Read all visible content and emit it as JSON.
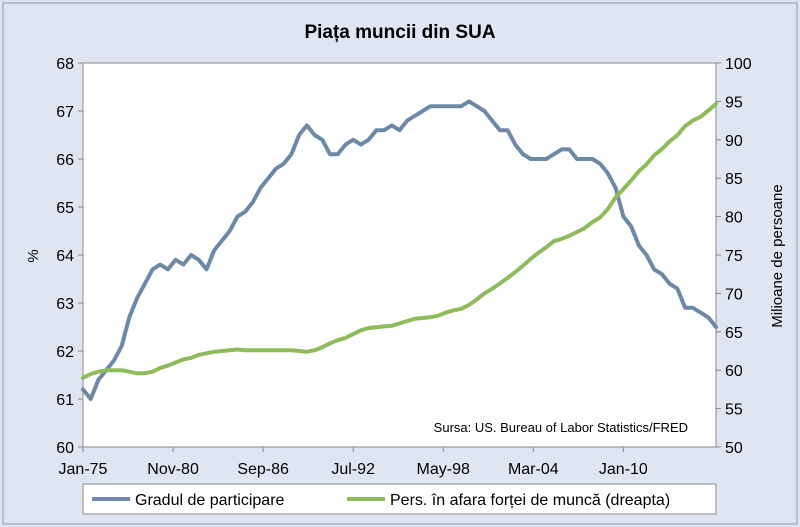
{
  "chart_data": {
    "type": "line",
    "title": "Piața muncii din SUA",
    "ylabel_left": "%",
    "ylabel_right": "Milioane de persoane",
    "source_note": "Sursa: US. Bureau of Labor Statistics/FRED",
    "x_range": [
      1975.0,
      2016.0
    ],
    "x_ticks": [
      {
        "label": "Jan-75",
        "year": 1975.0
      },
      {
        "label": "Nov-80",
        "year": 1980.833
      },
      {
        "label": "Sep-86",
        "year": 1986.667
      },
      {
        "label": "Jul-92",
        "year": 1992.5
      },
      {
        "label": "May-98",
        "year": 1998.333
      },
      {
        "label": "Mar-04",
        "year": 2004.167
      },
      {
        "label": "Jan-10",
        "year": 2010.0
      }
    ],
    "y_left": {
      "min": 60,
      "max": 68,
      "ticks": [
        "60",
        "61",
        "62",
        "63",
        "64",
        "65",
        "66",
        "67",
        "68"
      ]
    },
    "y_right": {
      "min": 50,
      "max": 100,
      "ticks": [
        "50",
        "55",
        "60",
        "65",
        "70",
        "75",
        "80",
        "85",
        "90",
        "95",
        "100"
      ]
    },
    "grid": false,
    "legend_position": "bottom",
    "series": [
      {
        "name": "Gradul de participare",
        "axis": "left",
        "color": "#6e89a8",
        "points": [
          [
            1975.0,
            61.2
          ],
          [
            1975.5,
            61.0
          ],
          [
            1976.0,
            61.4
          ],
          [
            1976.5,
            61.6
          ],
          [
            1977.0,
            61.8
          ],
          [
            1977.5,
            62.1
          ],
          [
            1978.0,
            62.7
          ],
          [
            1978.5,
            63.1
          ],
          [
            1979.0,
            63.4
          ],
          [
            1979.5,
            63.7
          ],
          [
            1980.0,
            63.8
          ],
          [
            1980.5,
            63.7
          ],
          [
            1981.0,
            63.9
          ],
          [
            1981.5,
            63.8
          ],
          [
            1982.0,
            64.0
          ],
          [
            1982.5,
            63.9
          ],
          [
            1983.0,
            63.7
          ],
          [
            1983.5,
            64.1
          ],
          [
            1984.0,
            64.3
          ],
          [
            1984.5,
            64.5
          ],
          [
            1985.0,
            64.8
          ],
          [
            1985.5,
            64.9
          ],
          [
            1986.0,
            65.1
          ],
          [
            1986.5,
            65.4
          ],
          [
            1987.0,
            65.6
          ],
          [
            1987.5,
            65.8
          ],
          [
            1988.0,
            65.9
          ],
          [
            1988.5,
            66.1
          ],
          [
            1989.0,
            66.5
          ],
          [
            1989.5,
            66.7
          ],
          [
            1990.0,
            66.5
          ],
          [
            1990.5,
            66.4
          ],
          [
            1991.0,
            66.1
          ],
          [
            1991.5,
            66.1
          ],
          [
            1992.0,
            66.3
          ],
          [
            1992.5,
            66.4
          ],
          [
            1993.0,
            66.3
          ],
          [
            1993.5,
            66.4
          ],
          [
            1994.0,
            66.6
          ],
          [
            1994.5,
            66.6
          ],
          [
            1995.0,
            66.7
          ],
          [
            1995.5,
            66.6
          ],
          [
            1996.0,
            66.8
          ],
          [
            1996.5,
            66.9
          ],
          [
            1997.0,
            67.0
          ],
          [
            1997.5,
            67.1
          ],
          [
            1998.0,
            67.1
          ],
          [
            1998.5,
            67.1
          ],
          [
            1999.0,
            67.1
          ],
          [
            1999.5,
            67.1
          ],
          [
            2000.0,
            67.2
          ],
          [
            2000.5,
            67.1
          ],
          [
            2001.0,
            67.0
          ],
          [
            2001.5,
            66.8
          ],
          [
            2002.0,
            66.6
          ],
          [
            2002.5,
            66.6
          ],
          [
            2003.0,
            66.3
          ],
          [
            2003.5,
            66.1
          ],
          [
            2004.0,
            66.0
          ],
          [
            2004.5,
            66.0
          ],
          [
            2005.0,
            66.0
          ],
          [
            2005.5,
            66.1
          ],
          [
            2006.0,
            66.2
          ],
          [
            2006.5,
            66.2
          ],
          [
            2007.0,
            66.0
          ],
          [
            2007.5,
            66.0
          ],
          [
            2008.0,
            66.0
          ],
          [
            2008.5,
            65.9
          ],
          [
            2009.0,
            65.7
          ],
          [
            2009.5,
            65.4
          ],
          [
            2010.0,
            64.8
          ],
          [
            2010.5,
            64.6
          ],
          [
            2011.0,
            64.2
          ],
          [
            2011.5,
            64.0
          ],
          [
            2012.0,
            63.7
          ],
          [
            2012.5,
            63.6
          ],
          [
            2013.0,
            63.4
          ],
          [
            2013.5,
            63.3
          ],
          [
            2014.0,
            62.9
          ],
          [
            2014.5,
            62.9
          ],
          [
            2015.0,
            62.8
          ],
          [
            2015.5,
            62.7
          ],
          [
            2016.0,
            62.5
          ]
        ]
      },
      {
        "name": "Pers. în afara forței de muncă (dreapta)",
        "axis": "right",
        "color": "#8fbc5a",
        "points": [
          [
            1975.0,
            59.0
          ],
          [
            1975.5,
            59.5
          ],
          [
            1976.0,
            59.8
          ],
          [
            1976.5,
            60.0
          ],
          [
            1977.0,
            60.0
          ],
          [
            1977.5,
            60.0
          ],
          [
            1978.0,
            59.8
          ],
          [
            1978.5,
            59.6
          ],
          [
            1979.0,
            59.6
          ],
          [
            1979.5,
            59.8
          ],
          [
            1980.0,
            60.3
          ],
          [
            1980.5,
            60.6
          ],
          [
            1981.0,
            61.0
          ],
          [
            1981.5,
            61.4
          ],
          [
            1982.0,
            61.6
          ],
          [
            1982.5,
            62.0
          ],
          [
            1983.0,
            62.2
          ],
          [
            1983.5,
            62.4
          ],
          [
            1984.0,
            62.5
          ],
          [
            1984.5,
            62.6
          ],
          [
            1985.0,
            62.7
          ],
          [
            1985.5,
            62.6
          ],
          [
            1986.0,
            62.6
          ],
          [
            1986.5,
            62.6
          ],
          [
            1987.0,
            62.6
          ],
          [
            1987.5,
            62.6
          ],
          [
            1988.0,
            62.6
          ],
          [
            1988.5,
            62.6
          ],
          [
            1989.0,
            62.5
          ],
          [
            1989.5,
            62.4
          ],
          [
            1990.0,
            62.6
          ],
          [
            1990.5,
            63.0
          ],
          [
            1991.0,
            63.5
          ],
          [
            1991.5,
            63.9
          ],
          [
            1992.0,
            64.2
          ],
          [
            1992.5,
            64.7
          ],
          [
            1993.0,
            65.2
          ],
          [
            1993.5,
            65.5
          ],
          [
            1994.0,
            65.6
          ],
          [
            1994.5,
            65.7
          ],
          [
            1995.0,
            65.8
          ],
          [
            1995.5,
            66.1
          ],
          [
            1996.0,
            66.4
          ],
          [
            1996.5,
            66.7
          ],
          [
            1997.0,
            66.8
          ],
          [
            1997.5,
            66.9
          ],
          [
            1998.0,
            67.1
          ],
          [
            1998.5,
            67.5
          ],
          [
            1999.0,
            67.8
          ],
          [
            1999.5,
            68.0
          ],
          [
            2000.0,
            68.5
          ],
          [
            2000.5,
            69.2
          ],
          [
            2001.0,
            70.0
          ],
          [
            2001.5,
            70.6
          ],
          [
            2002.0,
            71.3
          ],
          [
            2002.5,
            72.0
          ],
          [
            2003.0,
            72.8
          ],
          [
            2003.5,
            73.6
          ],
          [
            2004.0,
            74.5
          ],
          [
            2004.5,
            75.3
          ],
          [
            2005.0,
            76.0
          ],
          [
            2005.5,
            76.8
          ],
          [
            2006.0,
            77.1
          ],
          [
            2006.5,
            77.5
          ],
          [
            2007.0,
            78.0
          ],
          [
            2007.5,
            78.5
          ],
          [
            2008.0,
            79.3
          ],
          [
            2008.5,
            79.9
          ],
          [
            2009.0,
            81.0
          ],
          [
            2009.5,
            82.5
          ],
          [
            2010.0,
            83.6
          ],
          [
            2010.5,
            84.7
          ],
          [
            2011.0,
            85.9
          ],
          [
            2011.5,
            86.8
          ],
          [
            2012.0,
            88.0
          ],
          [
            2012.5,
            88.8
          ],
          [
            2013.0,
            89.8
          ],
          [
            2013.5,
            90.6
          ],
          [
            2014.0,
            91.8
          ],
          [
            2014.5,
            92.5
          ],
          [
            2015.0,
            93.0
          ],
          [
            2015.5,
            93.8
          ],
          [
            2016.0,
            94.7
          ]
        ]
      }
    ]
  }
}
